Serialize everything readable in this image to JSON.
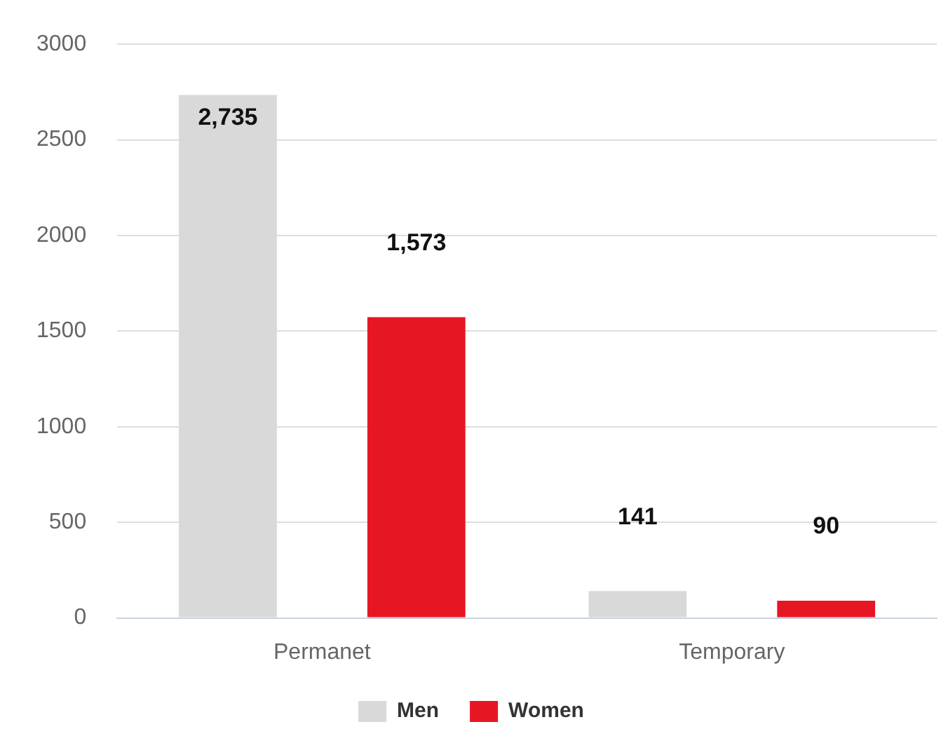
{
  "chart_data": {
    "type": "bar",
    "categories": [
      "Permanet",
      "Temporary"
    ],
    "series": [
      {
        "name": "Men",
        "color": "#d9d9d9",
        "values": [
          2735,
          141
        ],
        "value_labels": [
          "2,735",
          "141"
        ]
      },
      {
        "name": "Women",
        "color": "#e71623",
        "values": [
          1573,
          90
        ],
        "value_labels": [
          "1,573",
          "90"
        ]
      }
    ],
    "ylim": [
      0,
      3000
    ],
    "yticks": [
      0,
      500,
      1000,
      1500,
      2000,
      2500,
      3000
    ],
    "grid": "y",
    "legend": "bottom"
  }
}
